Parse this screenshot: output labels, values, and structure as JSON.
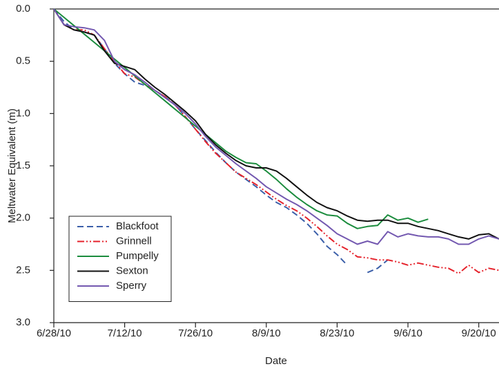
{
  "chart_data": {
    "type": "line",
    "y_label": "Meltwater Equivalent (m)",
    "x_label": "Date",
    "x": [
      "2010-06-28",
      "2010-06-30",
      "2010-07-02",
      "2010-07-04",
      "2010-07-06",
      "2010-07-08",
      "2010-07-10",
      "2010-07-12",
      "2010-07-14",
      "2010-07-16",
      "2010-07-18",
      "2010-07-20",
      "2010-07-22",
      "2010-07-24",
      "2010-07-26",
      "2010-07-28",
      "2010-07-30",
      "2010-08-01",
      "2010-08-03",
      "2010-08-05",
      "2010-08-07",
      "2010-08-09",
      "2010-08-11",
      "2010-08-13",
      "2010-08-15",
      "2010-08-17",
      "2010-08-19",
      "2010-08-21",
      "2010-08-23",
      "2010-08-25",
      "2010-08-27",
      "2010-08-29",
      "2010-08-31",
      "2010-09-02",
      "2010-09-04",
      "2010-09-06",
      "2010-09-08",
      "2010-09-10",
      "2010-09-12",
      "2010-09-14",
      "2010-09-16",
      "2010-09-18",
      "2010-09-20",
      "2010-09-22",
      "2010-09-24"
    ],
    "xlim": [
      "2010-06-28",
      "2010-09-24"
    ],
    "xticks": [
      {
        "value": "2010-06-28",
        "label": "6/28/10"
      },
      {
        "value": "2010-07-12",
        "label": "7/12/10"
      },
      {
        "value": "2010-07-26",
        "label": "7/26/10"
      },
      {
        "value": "2010-08-09",
        "label": "8/9/10"
      },
      {
        "value": "2010-08-23",
        "label": "8/23/10"
      },
      {
        "value": "2010-09-06",
        "label": "9/6/10"
      },
      {
        "value": "2010-09-20",
        "label": "9/20/10"
      }
    ],
    "ylim": [
      0,
      3
    ],
    "y_inverted": true,
    "yticks": [
      {
        "value": 0,
        "label": "0.0"
      },
      {
        "value": 0.5,
        "label": "0.5"
      },
      {
        "value": 1,
        "label": "1.0"
      },
      {
        "value": 1.5,
        "label": "1.5"
      },
      {
        "value": 2,
        "label": "2.0"
      },
      {
        "value": 2.5,
        "label": "2.5"
      },
      {
        "value": 3,
        "label": "3.0"
      }
    ],
    "legend": "lower left",
    "series": [
      {
        "name": "Blackfoot",
        "color": "#3b5fa9",
        "dash": "9 5",
        "values": [
          0,
          0.12,
          0.2,
          0.22,
          0.25,
          0.38,
          0.52,
          0.62,
          0.7,
          0.73,
          0.78,
          0.84,
          0.92,
          1.03,
          1.15,
          1.26,
          1.37,
          1.47,
          1.56,
          1.63,
          1.7,
          1.78,
          1.85,
          1.9,
          1.97,
          2.05,
          2.15,
          2.27,
          2.35,
          2.45,
          null,
          2.52,
          2.48,
          2.4,
          null,
          null,
          null,
          null,
          null,
          null,
          null,
          null,
          null,
          null,
          null
        ]
      },
      {
        "name": "Grinnell",
        "color": "#e5222b",
        "dash": "10 3 2 3 2 3",
        "values": [
          0,
          0.15,
          0.2,
          0.2,
          0.25,
          0.38,
          0.5,
          0.62,
          0.65,
          0.72,
          0.78,
          0.84,
          0.92,
          1.03,
          1.15,
          1.27,
          1.38,
          1.47,
          1.56,
          1.62,
          1.68,
          1.75,
          1.82,
          1.88,
          1.93,
          2.0,
          2.08,
          2.17,
          2.25,
          2.3,
          2.37,
          2.38,
          2.4,
          2.4,
          2.42,
          2.45,
          2.43,
          2.45,
          2.47,
          2.48,
          2.53,
          2.45,
          2.52,
          2.48,
          2.5
        ]
      },
      {
        "name": "Pumpelly",
        "color": "#1b8c3d",
        "dash": "none",
        "values": [
          0,
          0.08,
          0.16,
          0.24,
          0.32,
          0.4,
          0.48,
          0.56,
          0.64,
          0.72,
          0.8,
          0.88,
          0.96,
          1.04,
          1.12,
          1.2,
          1.28,
          1.36,
          1.42,
          1.47,
          1.48,
          1.55,
          1.63,
          1.72,
          1.8,
          1.87,
          1.93,
          1.97,
          1.98,
          2.05,
          2.1,
          2.08,
          2.07,
          1.97,
          2.02,
          2.0,
          2.04,
          2.01,
          null,
          null,
          null,
          null,
          null,
          null,
          null
        ]
      },
      {
        "name": "Sexton",
        "color": "#111111",
        "dash": "none",
        "values": [
          0,
          0.15,
          0.2,
          0.22,
          0.25,
          0.4,
          0.52,
          0.55,
          0.58,
          0.67,
          0.75,
          0.82,
          0.9,
          0.98,
          1.07,
          1.2,
          1.3,
          1.38,
          1.45,
          1.5,
          1.52,
          1.52,
          1.55,
          1.62,
          1.7,
          1.78,
          1.85,
          1.9,
          1.93,
          1.98,
          2.02,
          2.03,
          2.02,
          2.02,
          2.05,
          2.05,
          2.08,
          2.1,
          2.12,
          2.15,
          2.18,
          2.2,
          2.16,
          2.15,
          2.2
        ]
      },
      {
        "name": "Sperry",
        "color": "#7358b0",
        "dash": "none",
        "values": [
          0,
          0.15,
          0.17,
          0.18,
          0.2,
          0.3,
          0.5,
          0.58,
          0.63,
          0.7,
          0.78,
          0.85,
          0.92,
          1.0,
          1.1,
          1.22,
          1.32,
          1.4,
          1.48,
          1.55,
          1.62,
          1.7,
          1.76,
          1.82,
          1.87,
          1.93,
          2.0,
          2.07,
          2.15,
          2.2,
          2.25,
          2.22,
          2.25,
          2.13,
          2.18,
          2.15,
          2.17,
          2.18,
          2.18,
          2.2,
          2.25,
          2.25,
          2.2,
          2.17,
          2.2
        ]
      }
    ]
  }
}
